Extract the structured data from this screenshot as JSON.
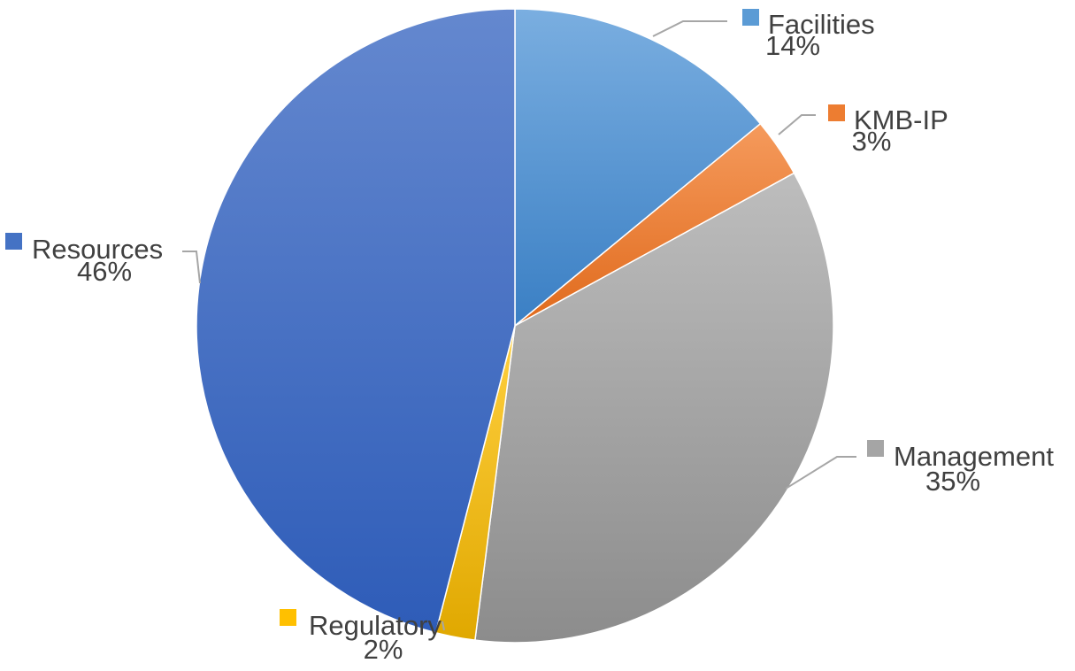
{
  "chart_data": {
    "type": "pie",
    "title": "",
    "slices": [
      {
        "label": "Facilities",
        "value": 14,
        "value_label": "14%",
        "color": "#5b9bd5"
      },
      {
        "label": "KMB-IP",
        "value": 3,
        "value_label": "3%",
        "color": "#ed7d31"
      },
      {
        "label": "Management",
        "value": 35,
        "value_label": "35%",
        "color": "#a5a5a5"
      },
      {
        "label": "Regulatory",
        "value": 2,
        "value_label": "2%",
        "color": "#ffc000"
      },
      {
        "label": "Resources",
        "value": 46,
        "value_label": "46%",
        "color": "#4472c4"
      }
    ],
    "legend": "none",
    "data_labels": "outside-with-leader-lines"
  }
}
